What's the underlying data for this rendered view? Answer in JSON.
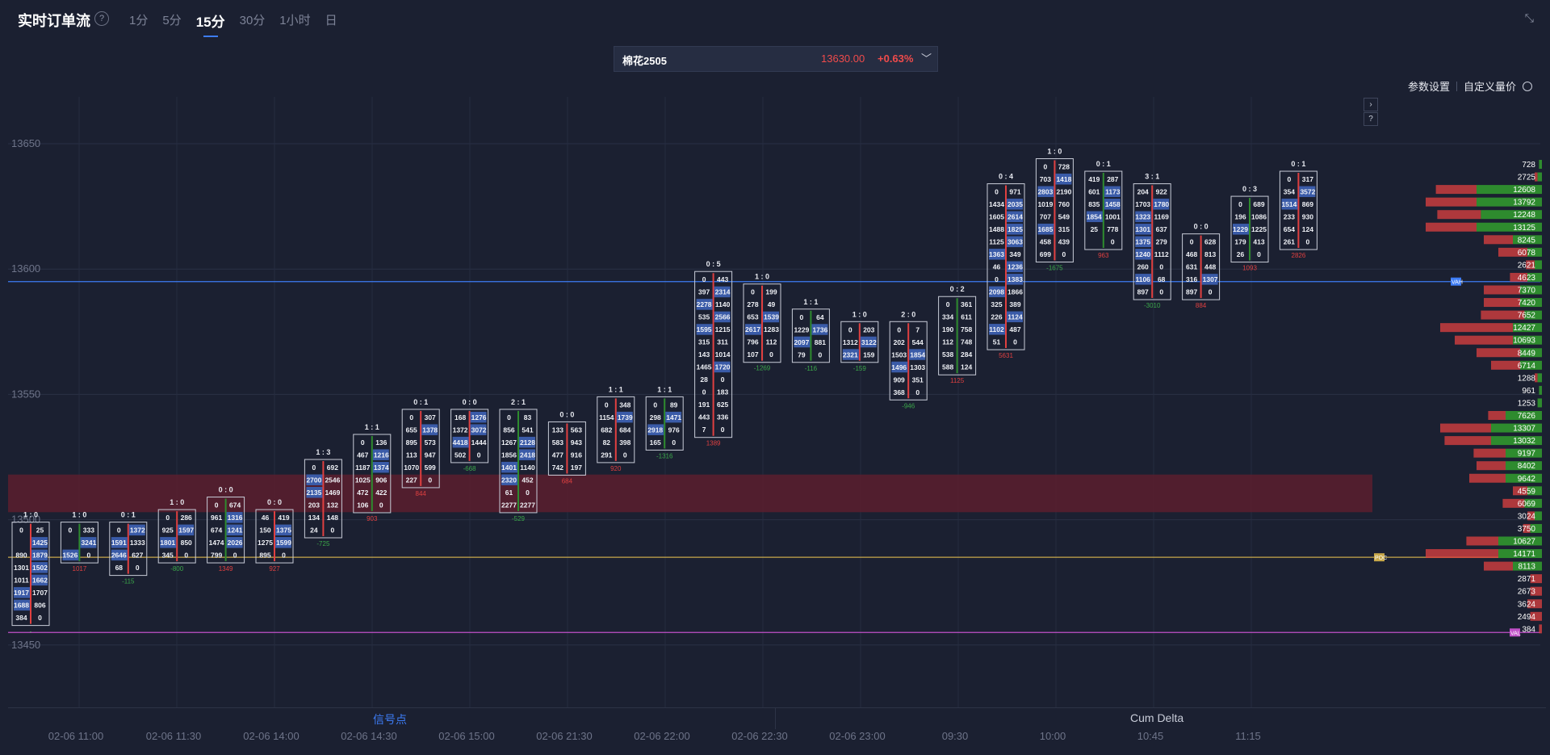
{
  "header": {
    "title": "实时订单流",
    "help_icon": "question-circle-icon",
    "intervals": [
      {
        "label": "1分"
      },
      {
        "label": "5分"
      },
      {
        "label": "15分"
      },
      {
        "label": "30分"
      },
      {
        "label": "1小时"
      },
      {
        "label": "日"
      }
    ],
    "active_interval": "15分",
    "collapse_icon": "collapse-arrows-icon"
  },
  "symbol": {
    "name": "棉花2505",
    "price": "13630.00",
    "change": "+0.63%",
    "chevron_icon": "chevron-down-icon"
  },
  "toolbar": {
    "settings_label": "参数设置",
    "custom_price_label": "自定义量价",
    "custom_price_icon": "settings-circle-icon",
    "expand_icon": "chevron-right-icon",
    "help_icon": "question-icon"
  },
  "colors": {
    "background": "#1b2031",
    "bull": "#2e8b2e",
    "bear": "#e04040",
    "highlight_cell": "#3a5ba8",
    "value_area": "#5a1f2e",
    "poc_line": "#c8a84a",
    "val_line": "#c050c8",
    "vah_line": "#3d7cf5"
  },
  "chart_data": {
    "type": "footprint",
    "y_ticks": [
      "13650",
      "13600",
      "13550",
      "13500",
      "13450"
    ],
    "x_ticks": [
      "02-06 11:00",
      "02-06 11:30",
      "02-06 14:00",
      "02-06 14:30",
      "02-06 15:00",
      "02-06 21:30",
      "02-06 22:00",
      "02-06 22:30",
      "02-06 23:00",
      "09:30",
      "10:00",
      "10:45",
      "11:15"
    ],
    "markers": [
      {
        "label": "VAH",
        "price": 13595
      },
      {
        "label": "POC",
        "price": 13485
      },
      {
        "label": "VAL",
        "price": 13455
      }
    ],
    "value_area_band": [
      13503,
      13518
    ],
    "bars": [
      {
        "ratio": "1 : 0",
        "top": 13500,
        "rows": [
          [
            "0",
            "25"
          ],
          [
            "",
            "1425"
          ],
          [
            "890",
            "1879"
          ],
          [
            "1301",
            "1502"
          ],
          [
            "1011",
            "1662"
          ],
          [
            "1917",
            "1707"
          ],
          [
            "1688",
            "806"
          ],
          [
            "384",
            "0"
          ]
        ],
        "delta": "-"
      },
      {
        "ratio": "1 : 0",
        "top": 13500,
        "rows": [
          [
            "0",
            "333"
          ],
          [
            "",
            "3241"
          ],
          [
            "1526",
            "0"
          ]
        ],
        "delta": "1017"
      },
      {
        "ratio": "0 : 1",
        "top": 13500,
        "rows": [
          [
            "0",
            "1372"
          ],
          [
            "1591",
            "1333"
          ],
          [
            "2646",
            "627"
          ],
          [
            "68",
            "0"
          ]
        ],
        "delta": "-115"
      },
      {
        "ratio": "1 : 0",
        "top": 13505,
        "rows": [
          [
            "0",
            "286"
          ],
          [
            "925",
            "1597"
          ],
          [
            "1801",
            "850"
          ],
          [
            "345",
            "0"
          ]
        ],
        "delta": "-800"
      },
      {
        "ratio": "0 : 0",
        "top": 13510,
        "rows": [
          [
            "0",
            "674"
          ],
          [
            "961",
            "1316"
          ],
          [
            "674",
            "1241"
          ],
          [
            "1474",
            "2026"
          ],
          [
            "799",
            "0"
          ]
        ],
        "delta": "1349"
      },
      {
        "ratio": "0 : 0",
        "top": 13505,
        "rows": [
          [
            "46",
            "419"
          ],
          [
            "150",
            "1375"
          ],
          [
            "1275",
            "1599"
          ],
          [
            "895",
            "0"
          ]
        ],
        "delta": "927"
      },
      {
        "ratio": "1 : 3",
        "top": 13525,
        "rows": [
          [
            "0",
            "692"
          ],
          [
            "2700",
            "2546"
          ],
          [
            "2135",
            "1469"
          ],
          [
            "203",
            "132"
          ],
          [
            "134",
            "148"
          ],
          [
            "24",
            "0"
          ]
        ],
        "delta": "-725"
      },
      {
        "ratio": "1 : 1",
        "top": 13535,
        "rows": [
          [
            "0",
            "136"
          ],
          [
            "467",
            "1216"
          ],
          [
            "1187",
            "1374"
          ],
          [
            "1025",
            "906"
          ],
          [
            "472",
            "422"
          ],
          [
            "106",
            "0"
          ]
        ],
        "delta": "903"
      },
      {
        "ratio": "0 : 1",
        "top": 13545,
        "rows": [
          [
            "0",
            "307"
          ],
          [
            "655",
            "1378"
          ],
          [
            "895",
            "573"
          ],
          [
            "113",
            "947"
          ],
          [
            "1070",
            "599"
          ],
          [
            "227",
            "0"
          ]
        ],
        "delta": "844"
      },
      {
        "ratio": "0 : 0",
        "top": 13545,
        "rows": [
          [
            "168",
            "1276"
          ],
          [
            "1372",
            "3072"
          ],
          [
            "4418",
            "1444"
          ],
          [
            "502",
            "0"
          ]
        ],
        "delta": "-668"
      },
      {
        "ratio": "2 : 1",
        "top": 13545,
        "rows": [
          [
            "0",
            "83"
          ],
          [
            "856",
            "541"
          ],
          [
            "1267",
            "2128"
          ],
          [
            "1856",
            "2418"
          ],
          [
            "1401",
            "1140"
          ],
          [
            "2320",
            "452"
          ],
          [
            "61",
            "0"
          ],
          [
            "2277",
            "2277"
          ]
        ],
        "delta": "-529"
      },
      {
        "ratio": "0 : 0",
        "top": 13540,
        "rows": [
          [
            "133",
            "563"
          ],
          [
            "583",
            "943"
          ],
          [
            "477",
            "916"
          ],
          [
            "742",
            "197"
          ]
        ],
        "delta": "684"
      },
      {
        "ratio": "1 : 1",
        "top": 13550,
        "rows": [
          [
            "0",
            "348"
          ],
          [
            "1154",
            "1739"
          ],
          [
            "682",
            "684"
          ],
          [
            "82",
            "398"
          ],
          [
            "291",
            "0"
          ]
        ],
        "delta": "920"
      },
      {
        "ratio": "1 : 1",
        "top": 13550,
        "rows": [
          [
            "0",
            "89"
          ],
          [
            "298",
            "1471"
          ],
          [
            "2918",
            "976"
          ],
          [
            "165",
            "0"
          ]
        ],
        "delta": "-1316"
      },
      {
        "ratio": "0 : 5",
        "top": 13600,
        "rows": [
          [
            "0",
            "443"
          ],
          [
            "397",
            "2314"
          ],
          [
            "2278",
            "1140"
          ],
          [
            "535",
            "2566"
          ],
          [
            "1595",
            "1215"
          ],
          [
            "315",
            "311"
          ],
          [
            "143",
            "1014"
          ],
          [
            "1465",
            "1720"
          ],
          [
            "28",
            "0"
          ],
          [
            "0",
            "183"
          ],
          [
            "191",
            "625"
          ],
          [
            "443",
            "336"
          ],
          [
            "7",
            "0"
          ]
        ],
        "delta": "1389"
      },
      {
        "ratio": "1 : 0",
        "top": 13595,
        "rows": [
          [
            "0",
            "199"
          ],
          [
            "278",
            "49"
          ],
          [
            "653",
            "1539"
          ],
          [
            "2617",
            "1283"
          ],
          [
            "796",
            "112"
          ],
          [
            "107",
            "0"
          ]
        ],
        "delta": "-1269"
      },
      {
        "ratio": "1 : 1",
        "top": 13585,
        "rows": [
          [
            "0",
            "64"
          ],
          [
            "1229",
            "1736"
          ],
          [
            "2097",
            "881"
          ],
          [
            "79",
            "0"
          ]
        ],
        "delta": "-116"
      },
      {
        "ratio": "1 : 0",
        "top": 13580,
        "rows": [
          [
            "0",
            "203"
          ],
          [
            "1312",
            "3122"
          ],
          [
            "2321",
            "159"
          ]
        ],
        "delta": "-159"
      },
      {
        "ratio": "2 : 0",
        "top": 13580,
        "rows": [
          [
            "0",
            "7"
          ],
          [
            "202",
            "544"
          ],
          [
            "1503",
            "1854"
          ],
          [
            "1496",
            "1303"
          ],
          [
            "909",
            "351"
          ],
          [
            "368",
            "0"
          ]
        ],
        "delta": "-946"
      },
      {
        "ratio": "0 : 2",
        "top": 13590,
        "rows": [
          [
            "0",
            "361"
          ],
          [
            "334",
            "611"
          ],
          [
            "190",
            "758"
          ],
          [
            "112",
            "748"
          ],
          [
            "538",
            "284"
          ],
          [
            "588",
            "124"
          ]
        ],
        "delta": "1125"
      },
      {
        "ratio": "0 : 4",
        "top": 13635,
        "rows": [
          [
            "0",
            "971"
          ],
          [
            "1434",
            "2035"
          ],
          [
            "1605",
            "2614"
          ],
          [
            "1488",
            "1825"
          ],
          [
            "1125",
            "3063"
          ],
          [
            "1363",
            "349"
          ],
          [
            "46",
            "1236"
          ],
          [
            "0",
            "1383"
          ],
          [
            "2098",
            "1866"
          ],
          [
            "325",
            "389"
          ],
          [
            "226",
            "1124"
          ],
          [
            "1102",
            "487"
          ],
          [
            "51",
            "0"
          ]
        ],
        "delta": "5631"
      },
      {
        "ratio": "1 : 0",
        "top": 13645,
        "rows": [
          [
            "0",
            "728"
          ],
          [
            "703",
            "1418"
          ],
          [
            "2803",
            "2190"
          ],
          [
            "1019",
            "760"
          ],
          [
            "707",
            "549"
          ],
          [
            "1685",
            "315"
          ],
          [
            "458",
            "439"
          ],
          [
            "699",
            "0"
          ]
        ],
        "delta": "-1675"
      },
      {
        "ratio": "0 : 1",
        "top": 13640,
        "rows": [
          [
            "419",
            "287"
          ],
          [
            "601",
            "1173"
          ],
          [
            "835",
            "1458"
          ],
          [
            "1854",
            "1001"
          ],
          [
            "25",
            "778"
          ],
          [
            "",
            "0"
          ]
        ],
        "delta": "963"
      },
      {
        "ratio": "3 : 1",
        "top": 13635,
        "rows": [
          [
            "204",
            "922"
          ],
          [
            "1703",
            "1780"
          ],
          [
            "1323",
            "1169"
          ],
          [
            "1301",
            "637"
          ],
          [
            "1375",
            "279"
          ],
          [
            "1240",
            "1112"
          ],
          [
            "260",
            "0"
          ],
          [
            "1106",
            "68"
          ],
          [
            "897",
            "0"
          ]
        ],
        "delta": "-3010"
      },
      {
        "ratio": "0 : 0",
        "top": 13615,
        "rows": [
          [
            "0",
            "628"
          ],
          [
            "468",
            "813"
          ],
          [
            "631",
            "448"
          ],
          [
            "316",
            "1307"
          ],
          [
            "897",
            "0"
          ]
        ],
        "delta": "884"
      },
      {
        "ratio": "0 : 3",
        "top": 13630,
        "rows": [
          [
            "0",
            "689"
          ],
          [
            "196",
            "1086"
          ],
          [
            "1229",
            "1225"
          ],
          [
            "179",
            "413"
          ],
          [
            "26",
            "0"
          ]
        ],
        "delta": "1093"
      },
      {
        "ratio": "0 : 1",
        "top": 13640,
        "rows": [
          [
            "0",
            "317"
          ],
          [
            "354",
            "3572"
          ],
          [
            "1514",
            "869"
          ],
          [
            "233",
            "930"
          ],
          [
            "654",
            "124"
          ],
          [
            "261",
            "0"
          ]
        ],
        "delta": "2826"
      }
    ],
    "volume_profile": [
      {
        "value": "728",
        "bull": 0.02,
        "bear": 0.0
      },
      {
        "value": "2725",
        "bull": 0.03,
        "bear": 0.02
      },
      {
        "value": "12608",
        "bull": 0.45,
        "bear": 0.28
      },
      {
        "value": "13792",
        "bull": 0.45,
        "bear": 0.35
      },
      {
        "value": "12248",
        "bull": 0.42,
        "bear": 0.3
      },
      {
        "value": "13125",
        "bull": 0.45,
        "bear": 0.35
      },
      {
        "value": "8245",
        "bull": 0.2,
        "bear": 0.2
      },
      {
        "value": "6078",
        "bull": 0.1,
        "bear": 0.2
      },
      {
        "value": "2621",
        "bull": 0.05,
        "bear": 0.06
      },
      {
        "value": "4623",
        "bull": 0.1,
        "bear": 0.12
      },
      {
        "value": "7370",
        "bull": 0.15,
        "bear": 0.25
      },
      {
        "value": "7420",
        "bull": 0.15,
        "bear": 0.25
      },
      {
        "value": "7652",
        "bull": 0.12,
        "bear": 0.3
      },
      {
        "value": "12427",
        "bull": 0.2,
        "bear": 0.5
      },
      {
        "value": "10693",
        "bull": 0.2,
        "bear": 0.4
      },
      {
        "value": "8449",
        "bull": 0.15,
        "bear": 0.3
      },
      {
        "value": "6714",
        "bull": 0.15,
        "bear": 0.2
      },
      {
        "value": "1288",
        "bull": 0.03,
        "bear": 0.02
      },
      {
        "value": "961",
        "bull": 0.02,
        "bear": 0.0
      },
      {
        "value": "1253",
        "bull": 0.03,
        "bear": 0.0
      },
      {
        "value": "7626",
        "bull": 0.25,
        "bear": 0.12
      },
      {
        "value": "13307",
        "bull": 0.35,
        "bear": 0.35
      },
      {
        "value": "13032",
        "bull": 0.35,
        "bear": 0.32
      },
      {
        "value": "9197",
        "bull": 0.25,
        "bear": 0.22
      },
      {
        "value": "8402",
        "bull": 0.25,
        "bear": 0.2
      },
      {
        "value": "9642",
        "bull": 0.25,
        "bear": 0.25
      },
      {
        "value": "4559",
        "bull": 0.1,
        "bear": 0.1
      },
      {
        "value": "6069",
        "bull": 0.12,
        "bear": 0.15
      },
      {
        "value": "3024",
        "bull": 0.05,
        "bear": 0.05
      },
      {
        "value": "3750",
        "bull": 0.08,
        "bear": 0.05
      },
      {
        "value": "10627",
        "bull": 0.3,
        "bear": 0.22
      },
      {
        "value": "14171",
        "bull": 0.3,
        "bear": 0.5
      },
      {
        "value": "8113",
        "bull": 0.2,
        "bear": 0.2
      },
      {
        "value": "2871",
        "bull": 0.0,
        "bear": 0.08
      },
      {
        "value": "2673",
        "bull": 0.0,
        "bear": 0.08
      },
      {
        "value": "3624",
        "bull": 0.0,
        "bear": 0.1
      },
      {
        "value": "2494",
        "bull": 0.0,
        "bear": 0.08
      },
      {
        "value": "384",
        "bull": 0.0,
        "bear": 0.02
      }
    ]
  },
  "footer": {
    "signal_tab": "信号点",
    "cum_delta_tab": "Cum Delta"
  }
}
